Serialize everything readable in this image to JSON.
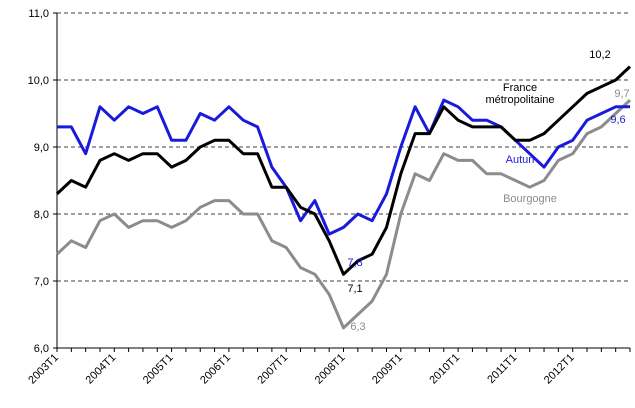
{
  "chart_data": {
    "type": "line",
    "categories": [
      "2003T1",
      null,
      null,
      null,
      "2004T1",
      null,
      null,
      null,
      "2005T1",
      null,
      null,
      null,
      "2006T1",
      null,
      null,
      null,
      "2007T1",
      null,
      null,
      null,
      "2008T1",
      null,
      null,
      null,
      "2009T1",
      null,
      null,
      null,
      "2010T1",
      null,
      null,
      null,
      "2011T1",
      null,
      null,
      null,
      "2012T1",
      null,
      null,
      null,
      null
    ],
    "series": [
      {
        "name": "France métropolitaine",
        "color": "#000000",
        "values": [
          8.3,
          8.5,
          8.4,
          8.8,
          8.9,
          8.8,
          8.9,
          8.9,
          8.7,
          8.8,
          9.0,
          9.1,
          9.1,
          8.9,
          8.9,
          8.4,
          8.4,
          8.1,
          8.0,
          7.6,
          7.1,
          7.3,
          7.4,
          7.8,
          8.6,
          9.2,
          9.2,
          9.6,
          9.4,
          9.3,
          9.3,
          9.3,
          9.1,
          9.1,
          9.2,
          9.4,
          9.6,
          9.8,
          9.9,
          10.0,
          10.2
        ]
      },
      {
        "name": "Autun",
        "color": "#1a1adc",
        "values": [
          9.3,
          9.3,
          8.9,
          9.6,
          9.4,
          9.6,
          9.5,
          9.6,
          9.1,
          9.1,
          9.5,
          9.4,
          9.6,
          9.4,
          9.3,
          8.7,
          8.4,
          7.9,
          8.2,
          7.7,
          7.8,
          8.0,
          7.9,
          8.3,
          9.0,
          9.6,
          9.2,
          9.7,
          9.6,
          9.4,
          9.4,
          9.3,
          9.1,
          8.9,
          8.7,
          9.0,
          9.1,
          9.4,
          9.5,
          9.6,
          9.6
        ]
      },
      {
        "name": "Bourgogne",
        "color": "#8c8c8c",
        "values": [
          7.4,
          7.6,
          7.5,
          7.9,
          8.0,
          7.8,
          7.9,
          7.9,
          7.8,
          7.9,
          8.1,
          8.2,
          8.2,
          8.0,
          8.0,
          7.6,
          7.5,
          7.2,
          7.1,
          6.8,
          6.3,
          6.5,
          6.7,
          7.1,
          8.0,
          8.6,
          8.5,
          8.9,
          8.8,
          8.8,
          8.6,
          8.6,
          8.5,
          8.4,
          8.5,
          8.8,
          8.9,
          9.2,
          9.3,
          9.5,
          9.7
        ]
      }
    ],
    "annotations": [
      "10,2",
      "9,7",
      "9,6",
      "7,8",
      "7,1",
      "6,3"
    ],
    "ylim": [
      6,
      11
    ],
    "yticks": [
      {
        "value": 6,
        "label": "6,0"
      },
      {
        "value": 7,
        "label": "7,0"
      },
      {
        "value": 8,
        "label": "8,0"
      },
      {
        "value": 9,
        "label": "9,0"
      },
      {
        "value": 10,
        "label": "10,0"
      },
      {
        "value": 11,
        "label": "11,0"
      }
    ],
    "grid": true
  }
}
